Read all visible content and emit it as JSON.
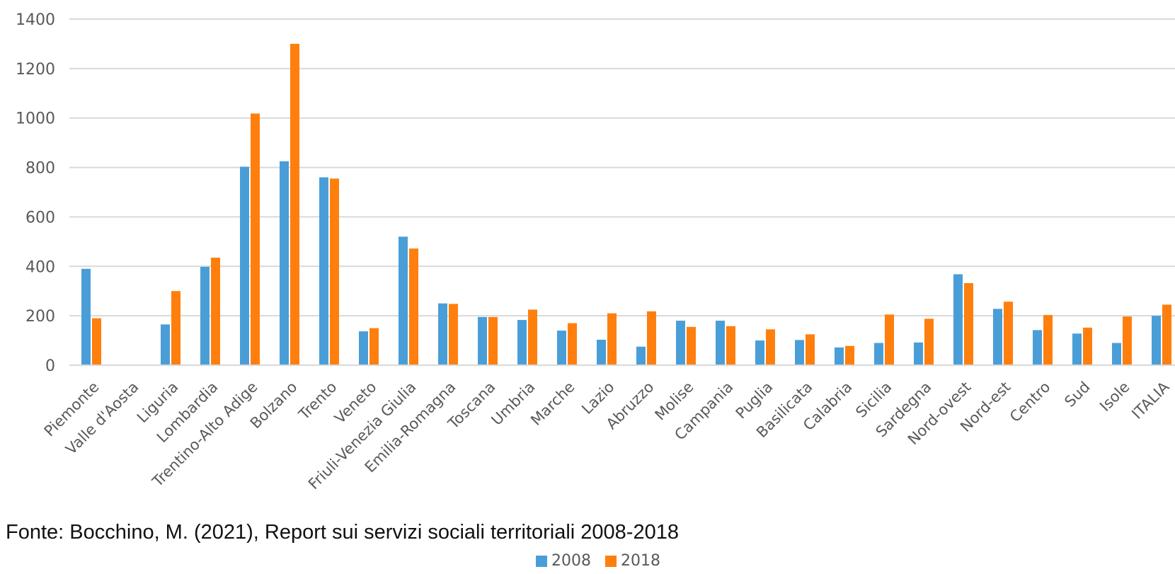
{
  "chart_data": {
    "type": "bar",
    "categories": [
      "Piemonte",
      "Valle d'Aosta",
      "Liguria",
      "Lombardia",
      "Trentino-Alto Adige",
      "Bolzano",
      "Trento",
      "Veneto",
      "Friuli-Venezia Giulia",
      "Emilia-Romagna",
      "Toscana",
      "Umbria",
      "Marche",
      "Lazio",
      "Abruzzo",
      "Molise",
      "Campania",
      "Puglia",
      "Basilicata",
      "Calabria",
      "Sicilia",
      "Sardegna",
      "Nord-ovest",
      "Nord-est",
      "Centro",
      "Sud",
      "Isole",
      "ITALIA"
    ],
    "series": [
      {
        "name": "2008",
        "color": "#4A9ED8",
        "values": [
          390,
          null,
          165,
          398,
          803,
          825,
          760,
          137,
          520,
          250,
          195,
          183,
          140,
          103,
          75,
          180,
          180,
          100,
          102,
          72,
          90,
          92,
          368,
          228,
          142,
          128,
          90,
          200
        ]
      },
      {
        "name": "2018",
        "color": "#FF7F0E",
        "values": [
          190,
          null,
          300,
          435,
          1018,
          1300,
          755,
          150,
          472,
          248,
          195,
          225,
          170,
          210,
          218,
          155,
          158,
          145,
          125,
          78,
          205,
          188,
          332,
          257,
          203,
          152,
          197,
          245
        ]
      }
    ],
    "ylim": [
      0,
      1400
    ],
    "yticks": [
      "0",
      "200",
      "400",
      "600",
      "800",
      "1000",
      "1200",
      "1400"
    ],
    "grid": true,
    "legend_position": "bottom-center"
  },
  "source_note": "Fonte: Bocchino, M. (2021), Report sui servizi sociali territoriali 2008-2018",
  "legend": [
    {
      "label": "2008",
      "color": "#4A9ED8"
    },
    {
      "label": "2018",
      "color": "#FF7F0E"
    }
  ]
}
